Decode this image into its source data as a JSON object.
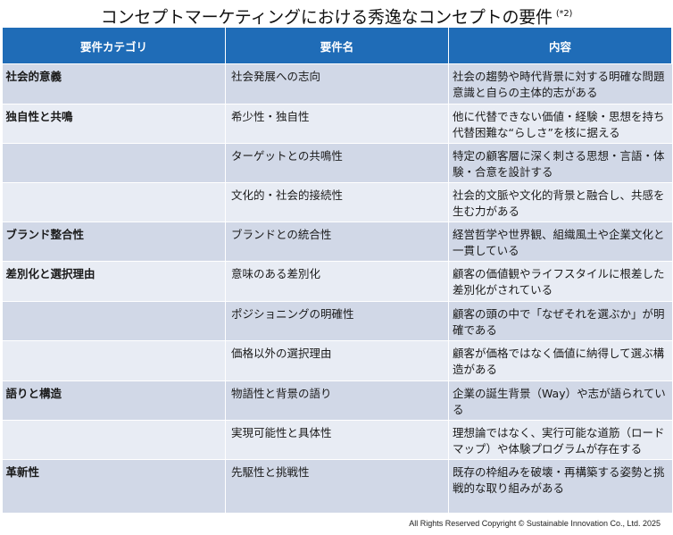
{
  "title": "コンセプトマーケティングにおける秀逸なコンセプトの要件",
  "title_note": "(*2)",
  "headers": [
    "要件カテゴリ",
    "要件名",
    "内容"
  ],
  "rows": [
    {
      "category": "社会的意義",
      "requirement": "社会発展への志向",
      "content": "社会の趨勢や時代背景に対する明確な問題意識と自らの主体的志がある"
    },
    {
      "category": "独自性と共鳴",
      "requirement": "希少性・独自性",
      "content": "他に代替できない価値・経験・思想を持ち代替困難な“らしさ”を核に据える"
    },
    {
      "category": "",
      "requirement": "ターゲットとの共鳴性",
      "content": "特定の顧客層に深く刺さる思想・言語・体験・合意を設計する"
    },
    {
      "category": "",
      "requirement": "文化的・社会的接続性",
      "content": "社会的文脈や文化的背景と融合し、共感を生む力がある"
    },
    {
      "category": "ブランド整合性",
      "requirement": "ブランドとの統合性",
      "content": "経営哲学や世界観、組織風土や企業文化と一貫している"
    },
    {
      "category": "差別化と選択理由",
      "requirement": "意味のある差別化",
      "content": "顧客の価値観やライフスタイルに根差した差別化がされている"
    },
    {
      "category": "",
      "requirement": "ポジショニングの明確性",
      "content": "顧客の頭の中で「なぜそれを選ぶか」が明確である"
    },
    {
      "category": "",
      "requirement": "価格以外の選択理由",
      "content": "顧客が価格ではなく価値に納得して選ぶ構造がある"
    },
    {
      "category": "語りと構造",
      "requirement": "物語性と背景の語り",
      "content": "企業の誕生背景（Way）や志が語られている"
    },
    {
      "category": "",
      "requirement": "実現可能性と具体性",
      "content": "理想論ではなく、実行可能な道筋（ロードマップ）や体験プログラムが存在する"
    },
    {
      "category": "革新性",
      "requirement": "先駆性と挑戦性",
      "content": "既存の枠組みを破壊・再構築する姿勢と挑戦的な取り組みがある"
    }
  ],
  "footer": "All Rights Reserved Copyright © Sustainable Innovation Co., Ltd. 2025",
  "colors": {
    "header_bg": "#1f6cb7",
    "row_odd": "#d1d8e7",
    "row_even": "#e8ecf4"
  }
}
